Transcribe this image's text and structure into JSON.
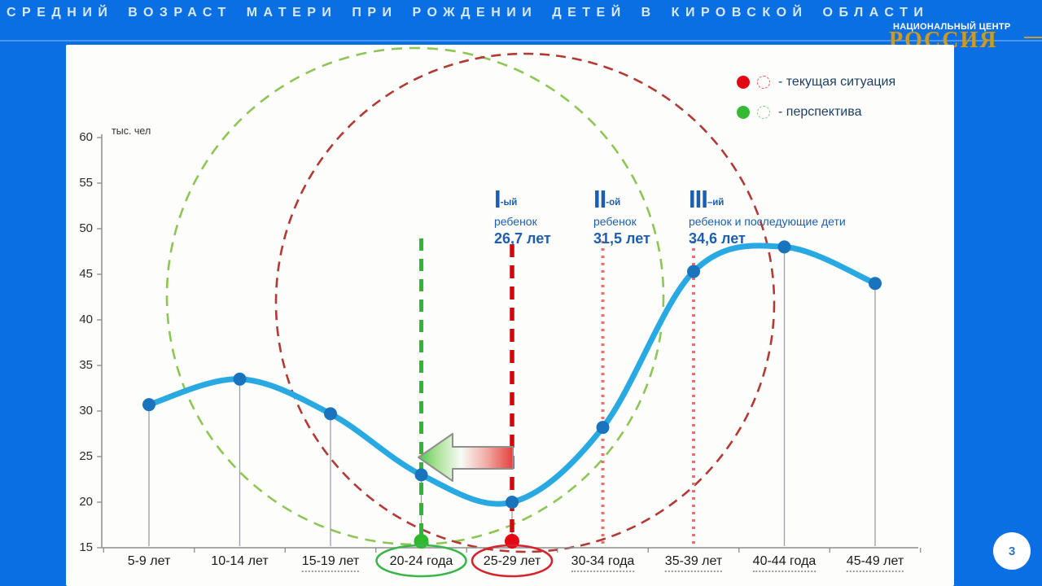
{
  "header": {
    "title": "СРЕДНИЙ ВОЗРАСТ МАТЕРИ ПРИ РОЖДЕНИИ ДЕТЕЙ В КИРОВСКОЙ ОБЛАСТИ",
    "org_name_line": "НАЦИОНАЛЬНЫЙ ЦЕНТР",
    "org_brand": "РОССИЯ"
  },
  "legend": {
    "items": [
      {
        "label": "- текущая ситуация",
        "color": "#e30613"
      },
      {
        "label": "- перспектива",
        "color": "#33bb33"
      }
    ]
  },
  "annotations": [
    {
      "numeral": "I",
      "suffix": "-ый",
      "line2": "ребенок",
      "value": "26,7 лет"
    },
    {
      "numeral": "II",
      "suffix": "-ой",
      "line2": "ребенок",
      "value": "31,5 лет"
    },
    {
      "numeral": "III",
      "suffix": "–ий",
      "line2": "ребенок и последующие дети",
      "value": "34,6 лет"
    }
  ],
  "footer": {
    "page_number": "3"
  },
  "chart_data": {
    "type": "line",
    "title": "СРЕДНИЙ ВОЗРАСТ МАТЕРИ ПРИ РОЖДЕНИИ ДЕТЕЙ В КИРОВСКОЙ ОБЛАСТИ",
    "y_unit": "тыс. чел",
    "ylim": [
      15,
      60
    ],
    "ytick_step": 5,
    "categories": [
      "5-9 лет",
      "10-14 лет",
      "15-19 лет",
      "20-24 года",
      "25-29 лет",
      "30-34 года",
      "35-39 лет",
      "40-44 года",
      "45-49 лет"
    ],
    "values": [
      30.7,
      33.5,
      29.7,
      23,
      20,
      28.2,
      45.3,
      48,
      44
    ],
    "underlined_categories": [
      "15-19 лет",
      "30-34 года",
      "35-39 лет",
      "40-44 года",
      "45-49 лет"
    ],
    "markers": {
      "perspective": {
        "category": "20-24 года",
        "color": "#2eb82e"
      },
      "current": {
        "category": "25-29 лет",
        "color": "#cf0a0a"
      },
      "dotted": [
        "30-34 года",
        "35-39 лет"
      ]
    },
    "arrow": {
      "from": "25-29 лет",
      "to": "20-24 года"
    },
    "line_color": "#29a9e1",
    "point_color": "#1a73bd",
    "legend_position": "top-right",
    "grid": false
  }
}
